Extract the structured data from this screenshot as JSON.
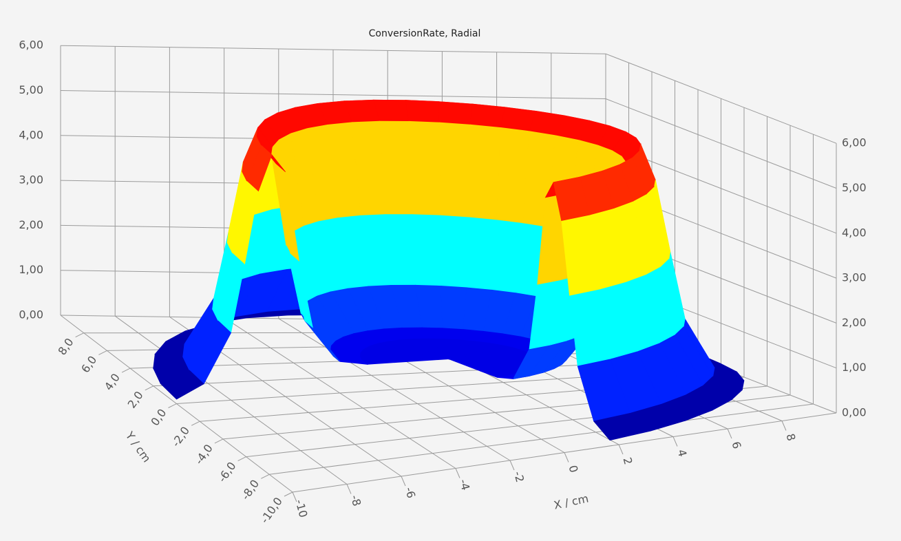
{
  "chart_data": {
    "type": "revolution-surface",
    "title": "ConversionRate, Radial",
    "x_label": "X / cm",
    "y_label": "Y / cm",
    "r": [
      0,
      2,
      3,
      4,
      5,
      5.5,
      6,
      6.5,
      7,
      7.5,
      8,
      9,
      10
    ],
    "z": [
      0.6,
      0.6,
      0.6,
      0.7,
      1.5,
      3.0,
      5.0,
      5.4,
      4.6,
      3.0,
      1.5,
      0.4,
      0.1
    ],
    "theta": [
      -80,
      -70,
      -60,
      -50,
      -40,
      -30,
      -20,
      -10,
      0,
      10,
      20,
      30,
      40,
      50,
      60,
      70,
      80,
      90,
      100,
      110,
      120,
      130,
      140,
      150,
      160,
      170,
      180
    ],
    "colormap": "jet",
    "xlim": [
      -10,
      10
    ],
    "ylim": [
      -10,
      10
    ],
    "zlim": [
      0,
      6
    ],
    "xticks": [
      -10,
      -8,
      -6,
      -4,
      -2,
      0,
      2,
      4,
      6,
      8
    ],
    "yticks": [
      {
        "value": -10,
        "label": "-10,0"
      },
      {
        "value": -8,
        "label": "-8,0"
      },
      {
        "value": -6,
        "label": "-6,0"
      },
      {
        "value": -4,
        "label": "-4,0"
      },
      {
        "value": -2,
        "label": "-2,0"
      },
      {
        "value": 0,
        "label": "0,0"
      },
      {
        "value": 2,
        "label": "2,0"
      },
      {
        "value": 4,
        "label": "4,0"
      },
      {
        "value": 6,
        "label": "6,0"
      },
      {
        "value": 8,
        "label": "8,0"
      }
    ],
    "zticks": [
      {
        "value": 0,
        "label": "0,00"
      },
      {
        "value": 1,
        "label": "1,00"
      },
      {
        "value": 2,
        "label": "2,00"
      },
      {
        "value": 3,
        "label": "3,00"
      },
      {
        "value": 4,
        "label": "4,00"
      },
      {
        "value": 5,
        "label": "5,00"
      },
      {
        "value": 6,
        "label": "6,00"
      }
    ],
    "grid": true
  }
}
